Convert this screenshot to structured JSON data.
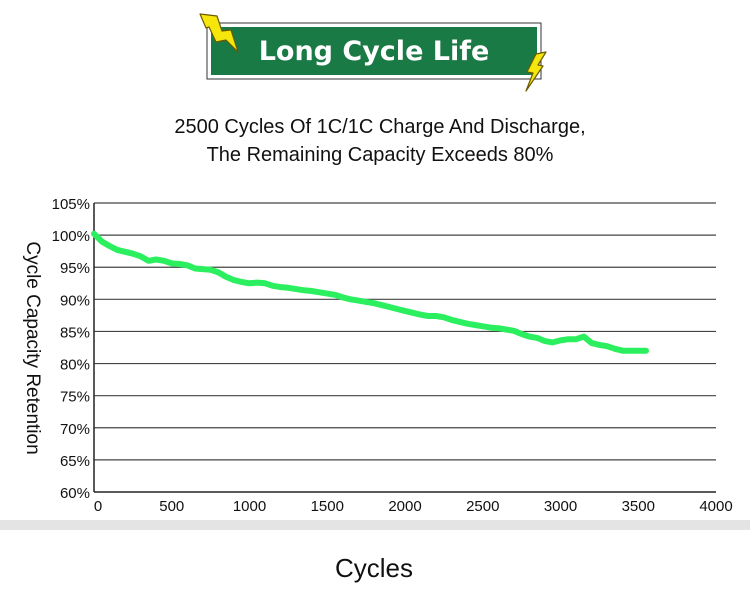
{
  "badge": {
    "text": "Long Cycle Life"
  },
  "chart_data": {
    "type": "line",
    "title_lines": [
      "2500 Cycles Of 1C/1C Charge And Discharge,",
      "The Remaining Capacity Exceeds 80%"
    ],
    "xlabel": "Cycles",
    "ylabel": "Cycle Capacity Retention",
    "xlim": [
      0,
      4000
    ],
    "ylim": [
      60,
      105
    ],
    "x_ticks": [
      0,
      500,
      1000,
      1500,
      2000,
      2500,
      3000,
      3500,
      4000
    ],
    "y_ticks": [
      60,
      65,
      70,
      75,
      80,
      85,
      90,
      95,
      100,
      105
    ],
    "x_tick_labels": [
      "0",
      "500",
      "1000",
      "1500",
      "2000",
      "2500",
      "3000",
      "3500",
      "4000"
    ],
    "y_tick_labels": [
      "60%",
      "65%",
      "70%",
      "75%",
      "80%",
      "85%",
      "90%",
      "95%",
      "100%",
      "105%"
    ],
    "grid": "horizontal",
    "colors": {
      "line": "#2bef5f",
      "badge_bg": "#1a7a45",
      "lightning": "#f5e60c",
      "grid": "#444444"
    },
    "series": [
      {
        "x": [
          0,
          50,
          100,
          150,
          200,
          250,
          300,
          350,
          400,
          450,
          500,
          550,
          600,
          650,
          700,
          750,
          800,
          850,
          900,
          950,
          1000,
          1050,
          1100,
          1150,
          1200,
          1250,
          1300,
          1350,
          1400,
          1450,
          1500,
          1550,
          1600,
          1650,
          1700,
          1750,
          1800,
          1850,
          1900,
          1950,
          2000,
          2050,
          2100,
          2150,
          2200,
          2250,
          2300,
          2350,
          2400,
          2450,
          2500,
          2550,
          2600,
          2650,
          2700,
          2750,
          2800,
          2850,
          2900,
          2950,
          3000,
          3050,
          3100,
          3150,
          3200,
          3250,
          3300,
          3350,
          3400,
          3450,
          3500,
          3550
        ],
        "y": [
          100.2,
          99.0,
          98.3,
          97.7,
          97.4,
          97.1,
          96.7,
          96.0,
          96.2,
          96.0,
          95.6,
          95.5,
          95.3,
          94.8,
          94.7,
          94.6,
          94.2,
          93.5,
          93.0,
          92.7,
          92.5,
          92.6,
          92.5,
          92.1,
          91.9,
          91.8,
          91.6,
          91.4,
          91.3,
          91.1,
          90.9,
          90.7,
          90.3,
          90.0,
          89.8,
          89.6,
          89.4,
          89.1,
          88.8,
          88.5,
          88.2,
          87.9,
          87.6,
          87.4,
          87.4,
          87.2,
          86.8,
          86.5,
          86.2,
          86.0,
          85.8,
          85.6,
          85.5,
          85.3,
          85.1,
          84.6,
          84.2,
          84.0,
          83.5,
          83.3,
          83.6,
          83.8,
          83.8,
          84.2,
          83.2,
          82.9,
          82.7,
          82.3,
          82.0,
          82.0,
          82.0,
          82.0
        ]
      }
    ]
  }
}
